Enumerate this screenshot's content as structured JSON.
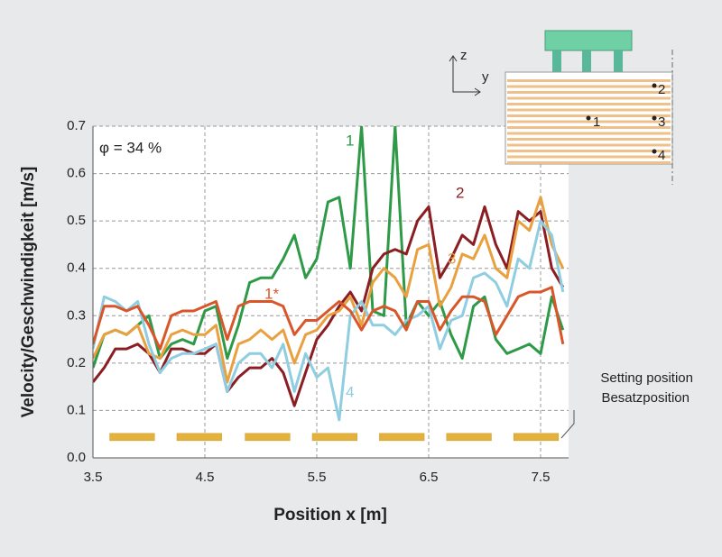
{
  "chart_data": {
    "type": "line",
    "annotation": "φ = 34 %",
    "xlabel": "Position x [m]",
    "ylabel": "Velocity/Geschwindigkeit [m/s]",
    "x": [
      3.5,
      3.6,
      3.7,
      3.8,
      3.9,
      4.0,
      4.1,
      4.2,
      4.3,
      4.4,
      4.5,
      4.6,
      4.7,
      4.8,
      4.9,
      5.0,
      5.1,
      5.2,
      5.3,
      5.4,
      5.5,
      5.6,
      5.7,
      5.8,
      5.9,
      6.0,
      6.1,
      6.2,
      6.3,
      6.4,
      6.5,
      6.6,
      6.7,
      6.8,
      6.9,
      7.0,
      7.1,
      7.2,
      7.3,
      7.4,
      7.5,
      7.6,
      7.7
    ],
    "series": [
      {
        "name": "1",
        "color": "#2e9a48",
        "values": [
          0.19,
          0.26,
          0.27,
          0.26,
          0.28,
          0.3,
          0.21,
          0.24,
          0.25,
          0.24,
          0.31,
          0.32,
          0.21,
          0.28,
          0.37,
          0.38,
          0.38,
          0.42,
          0.47,
          0.38,
          0.42,
          0.54,
          0.55,
          0.4,
          0.7,
          0.31,
          0.3,
          0.7,
          0.28,
          0.33,
          0.3,
          0.33,
          0.26,
          0.21,
          0.32,
          0.34,
          0.25,
          0.22,
          0.23,
          0.24,
          0.22,
          0.34,
          0.27
        ]
      },
      {
        "name": "2",
        "color": "#8b1e22",
        "values": [
          0.16,
          0.19,
          0.23,
          0.23,
          0.24,
          0.22,
          0.18,
          0.23,
          0.23,
          0.22,
          0.22,
          0.24,
          0.14,
          0.17,
          0.19,
          0.19,
          0.21,
          0.18,
          0.11,
          0.18,
          0.25,
          0.28,
          0.32,
          0.35,
          0.31,
          0.4,
          0.43,
          0.44,
          0.43,
          0.5,
          0.53,
          0.38,
          0.42,
          0.47,
          0.45,
          0.53,
          0.45,
          0.4,
          0.52,
          0.5,
          0.52,
          0.4,
          0.36
        ]
      },
      {
        "name": "3",
        "color": "#e8a040",
        "values": [
          0.21,
          0.26,
          0.27,
          0.26,
          0.28,
          0.22,
          0.21,
          0.26,
          0.27,
          0.26,
          0.26,
          0.28,
          0.16,
          0.24,
          0.25,
          0.27,
          0.25,
          0.27,
          0.2,
          0.26,
          0.27,
          0.3,
          0.31,
          0.34,
          0.28,
          0.37,
          0.4,
          0.38,
          0.34,
          0.44,
          0.45,
          0.32,
          0.36,
          0.43,
          0.42,
          0.47,
          0.4,
          0.38,
          0.5,
          0.48,
          0.55,
          0.45,
          0.4
        ]
      },
      {
        "name": "4",
        "color": "#8fcde0",
        "values": [
          0.23,
          0.34,
          0.33,
          0.31,
          0.33,
          0.24,
          0.18,
          0.21,
          0.22,
          0.22,
          0.23,
          0.24,
          0.14,
          0.2,
          0.22,
          0.22,
          0.19,
          0.24,
          0.14,
          0.22,
          0.17,
          0.19,
          0.08,
          0.3,
          0.33,
          0.28,
          0.28,
          0.26,
          0.29,
          0.3,
          0.32,
          0.23,
          0.29,
          0.3,
          0.38,
          0.39,
          0.37,
          0.32,
          0.42,
          0.4,
          0.5,
          0.47,
          0.35
        ]
      },
      {
        "name": "1*",
        "color": "#d9562a",
        "values": [
          0.24,
          0.32,
          0.32,
          0.31,
          0.32,
          0.28,
          0.23,
          0.3,
          0.31,
          0.31,
          0.32,
          0.33,
          0.25,
          0.32,
          0.33,
          0.33,
          0.33,
          0.32,
          0.26,
          0.29,
          0.29,
          0.31,
          0.33,
          0.31,
          0.27,
          0.31,
          0.32,
          0.31,
          0.27,
          0.33,
          0.33,
          0.27,
          0.31,
          0.34,
          0.34,
          0.33,
          0.26,
          0.3,
          0.34,
          0.35,
          0.35,
          0.36,
          0.24
        ]
      }
    ],
    "xlim": [
      3.5,
      7.75
    ],
    "ylim": [
      0,
      0.7
    ],
    "xticks": [
      3.5,
      4.5,
      5.5,
      6.5,
      7.5
    ],
    "yticks": [
      {
        "value": 0,
        "label": "0.0"
      },
      0.1,
      0.2,
      0.3,
      0.4,
      0.5,
      0.6,
      0.7
    ],
    "grid": true,
    "setting_positions": {
      "label": [
        "Setting position",
        "Besatzposition"
      ],
      "color": "#e3b23c",
      "y": 0.044,
      "ranges": [
        [
          3.65,
          4.05
        ],
        [
          4.25,
          4.65
        ],
        [
          4.86,
          5.26
        ],
        [
          5.46,
          5.86
        ],
        [
          6.06,
          6.46
        ],
        [
          6.66,
          7.06
        ],
        [
          7.26,
          7.66
        ]
      ]
    },
    "inset": {
      "axes": [
        "z",
        "y"
      ],
      "points": [
        "1",
        "2",
        "3",
        "4"
      ]
    }
  }
}
